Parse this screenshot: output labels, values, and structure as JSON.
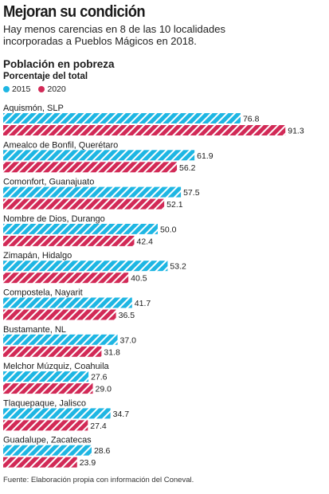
{
  "title": "Mejoran su condición",
  "subtitle_lines": [
    "Hay menos carencias en 8 de las 10 localidades",
    "incorporadas a Pueblos Mágicos en 2018."
  ],
  "section_title": "Población en pobreza",
  "section_subtitle": "Porcentaje del total",
  "source": "Fuente: Elaboración propia con información del Coneval.",
  "colors": {
    "s2015": "#1eb6e3",
    "s2020": "#d22a57"
  },
  "chart_data": {
    "type": "bar",
    "orientation": "horizontal",
    "categories": [
      "Aquismón, SLP",
      "Amealco de Bonfil, Querétaro",
      "Comonfort, Guanajuato",
      "Nombre de Dios, Durango",
      "Zimapán, Hidalgo",
      "Compostela, Nayarit",
      "Bustamante, NL",
      "Melchor Múzquiz, Coahuila",
      "Tlaquepaque, Jalisco",
      "Guadalupe, Zacatecas"
    ],
    "series": [
      {
        "name": "2015",
        "color": "#1eb6e3",
        "values": [
          76.8,
          61.9,
          57.5,
          50.0,
          53.2,
          41.7,
          37.0,
          27.6,
          34.7,
          28.6
        ]
      },
      {
        "name": "2020",
        "color": "#d22a57",
        "values": [
          91.3,
          56.2,
          52.1,
          42.4,
          40.5,
          36.5,
          31.8,
          29.0,
          27.4,
          23.9
        ]
      }
    ],
    "value_labels": [
      [
        "76.8",
        "61.9",
        "57.5",
        "50.0",
        "53.2",
        "41.7",
        "37.0",
        "27.6",
        "34.7",
        "28.6"
      ],
      [
        "91.3",
        "56.2",
        "52.1",
        "42.4",
        "40.5",
        "36.5",
        "31.8",
        "29.0",
        "27.4",
        "23.9"
      ]
    ],
    "legend_position": "top-left",
    "grid": false
  }
}
